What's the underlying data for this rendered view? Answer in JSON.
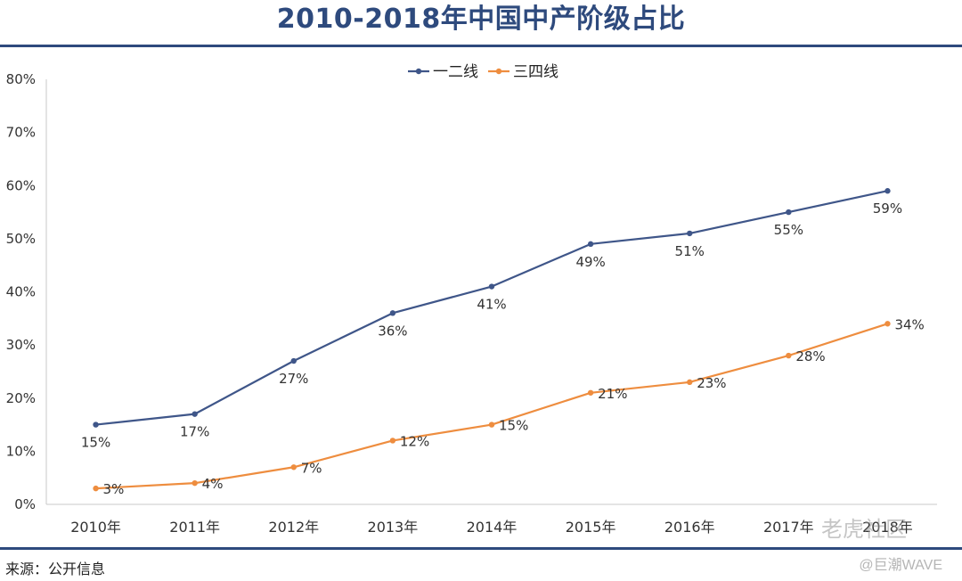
{
  "title": "2010-2018年中国中产阶级占比",
  "source": "来源：公开信息",
  "watermark": "老虎社区",
  "watermark_sub": "@巨潮WAVE",
  "colors": {
    "title": "#2e4a7d",
    "series1": "#3f5689",
    "series2": "#ee8d3f",
    "axis": "#c8c8c8"
  },
  "chart_data": {
    "type": "line",
    "categories": [
      "2010年",
      "2011年",
      "2012年",
      "2013年",
      "2014年",
      "2015年",
      "2016年",
      "2017年",
      "2018年"
    ],
    "series": [
      {
        "name": "一二线",
        "values": [
          15,
          17,
          27,
          36,
          41,
          49,
          51,
          55,
          59
        ],
        "labels": [
          "15%",
          "17%",
          "27%",
          "36%",
          "41%",
          "49%",
          "51%",
          "55%",
          "59%"
        ]
      },
      {
        "name": "三四线",
        "values": [
          3,
          4,
          7,
          12,
          15,
          21,
          23,
          28,
          34
        ],
        "labels": [
          "3%",
          "4%",
          "7%",
          "12%",
          "15%",
          "21%",
          "23%",
          "28%",
          "34%"
        ]
      }
    ],
    "yticks": [
      "0%",
      "10%",
      "20%",
      "30%",
      "40%",
      "50%",
      "60%",
      "70%",
      "80%"
    ],
    "ylim": [
      0,
      80
    ],
    "grid": false,
    "legend": "top-center"
  }
}
